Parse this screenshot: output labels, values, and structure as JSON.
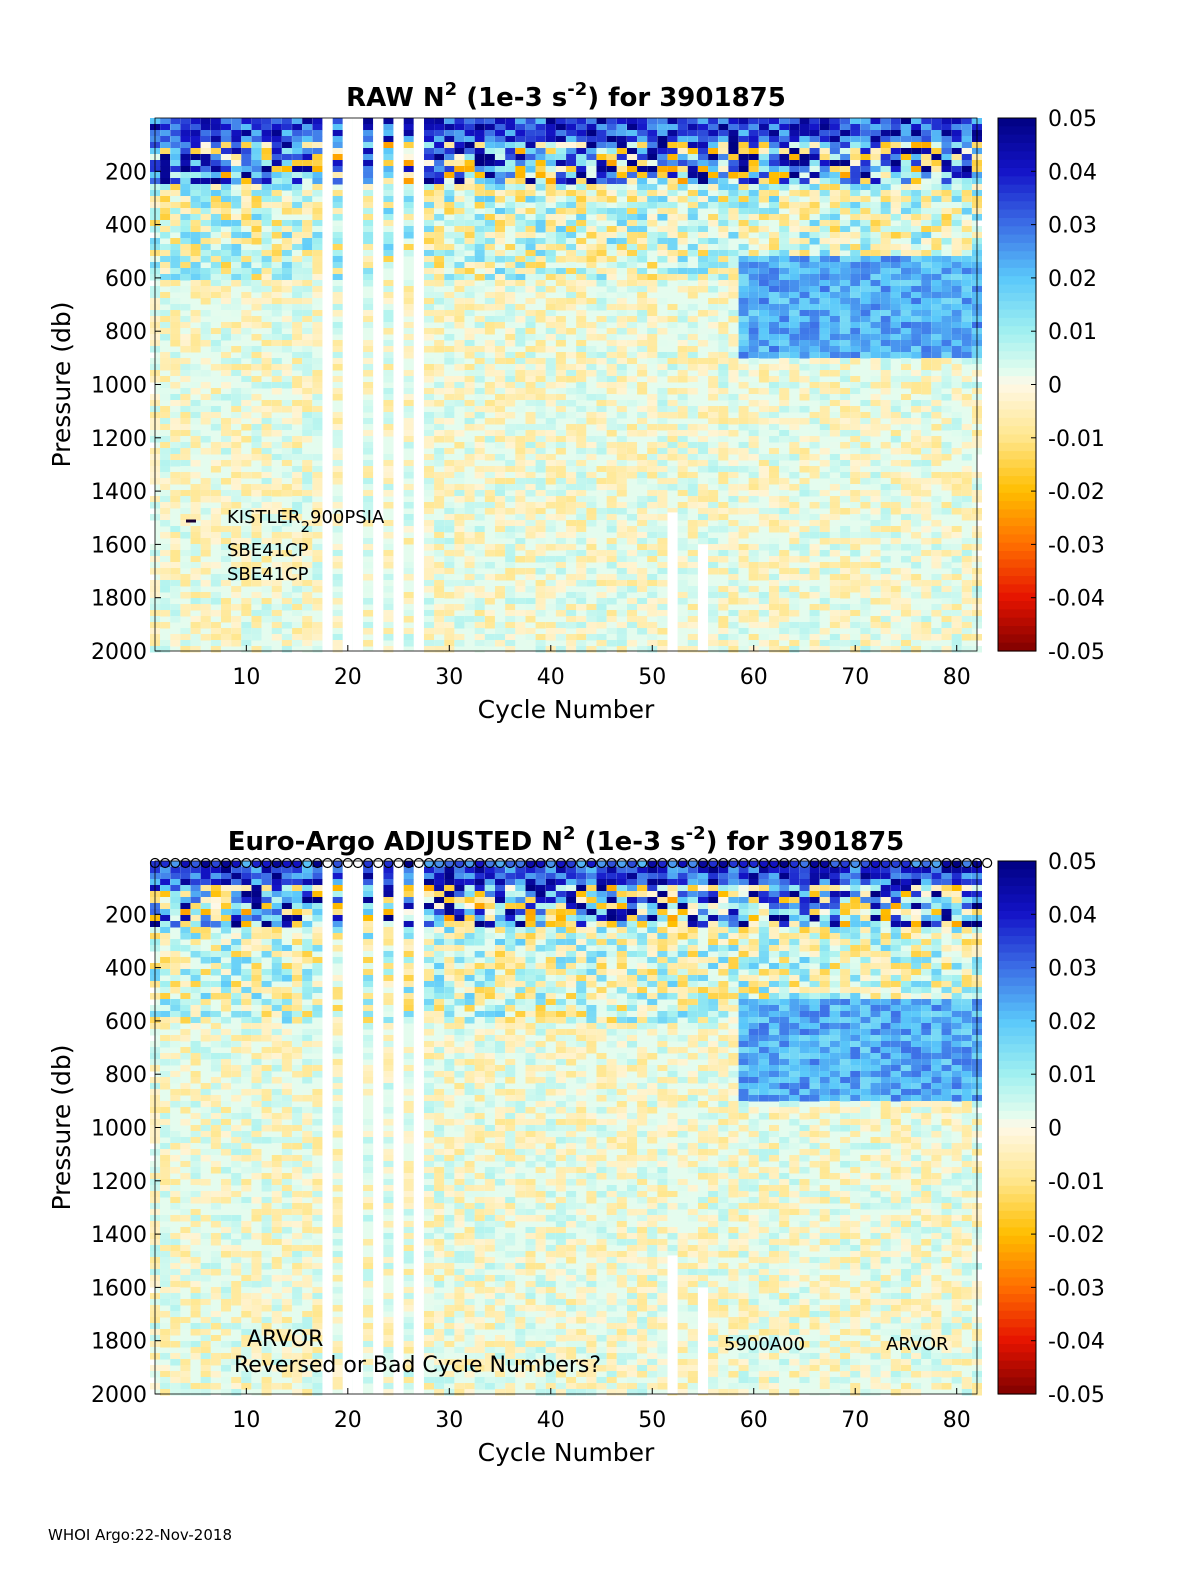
{
  "chart_data": [
    {
      "type": "heatmap",
      "title_parts": {
        "pre": "RAW N",
        "sup1": "2",
        "mid": " (1e-3 s",
        "sup2": "-2",
        "post": ") for 3901875"
      },
      "xlabel": "Cycle Number",
      "ylabel": "Pressure (db)",
      "xlim": [
        1,
        82
      ],
      "ylim": [
        2000,
        0
      ],
      "x_ticks": [
        "10",
        "20",
        "30",
        "40",
        "50",
        "60",
        "70",
        "80"
      ],
      "y_ticks": [
        "200",
        "400",
        "600",
        "800",
        "1000",
        "1200",
        "1400",
        "1600",
        "1800",
        "2000"
      ],
      "colorbar": {
        "range": [
          -0.05,
          0.05
        ],
        "ticks": [
          "0.05",
          "0.04",
          "0.03",
          "0.02",
          "0.01",
          "0",
          "-0.01",
          "-0.02",
          "-0.03",
          "-0.04",
          "-0.05"
        ]
      },
      "annotations": [
        {
          "text": "KISTLER",
          "sub": "2",
          "rest": "900PSIA"
        },
        {
          "text": "SBE41CP"
        },
        {
          "text": "SBE41CP"
        }
      ]
    },
    {
      "type": "heatmap",
      "title_parts": {
        "pre": "Euro-Argo  ADJUSTED N",
        "sup1": "2",
        "mid": " (1e-3 s",
        "sup2": "-2",
        "post": ") for 3901875"
      },
      "xlabel": "Cycle Number",
      "ylabel": "Pressure (db)",
      "xlim": [
        1,
        82
      ],
      "ylim": [
        2000,
        0
      ],
      "x_ticks": [
        "10",
        "20",
        "30",
        "40",
        "50",
        "60",
        "70",
        "80"
      ],
      "y_ticks": [
        "200",
        "400",
        "600",
        "800",
        "1000",
        "1200",
        "1400",
        "1600",
        "1800",
        "2000"
      ],
      "colorbar": {
        "range": [
          -0.05,
          0.05
        ],
        "ticks": [
          "0.05",
          "0.04",
          "0.03",
          "0.02",
          "0.01",
          "0",
          "-0.01",
          "-0.02",
          "-0.03",
          "-0.04",
          "-0.05"
        ]
      },
      "annotations": [
        {
          "text": "ARVOR"
        },
        {
          "text": "Reversed or Bad Cycle Numbers?"
        },
        {
          "text": "5900A00"
        },
        {
          "text": "ARVOR"
        }
      ]
    }
  ],
  "footer": "WHOI Argo:22-Nov-2018"
}
